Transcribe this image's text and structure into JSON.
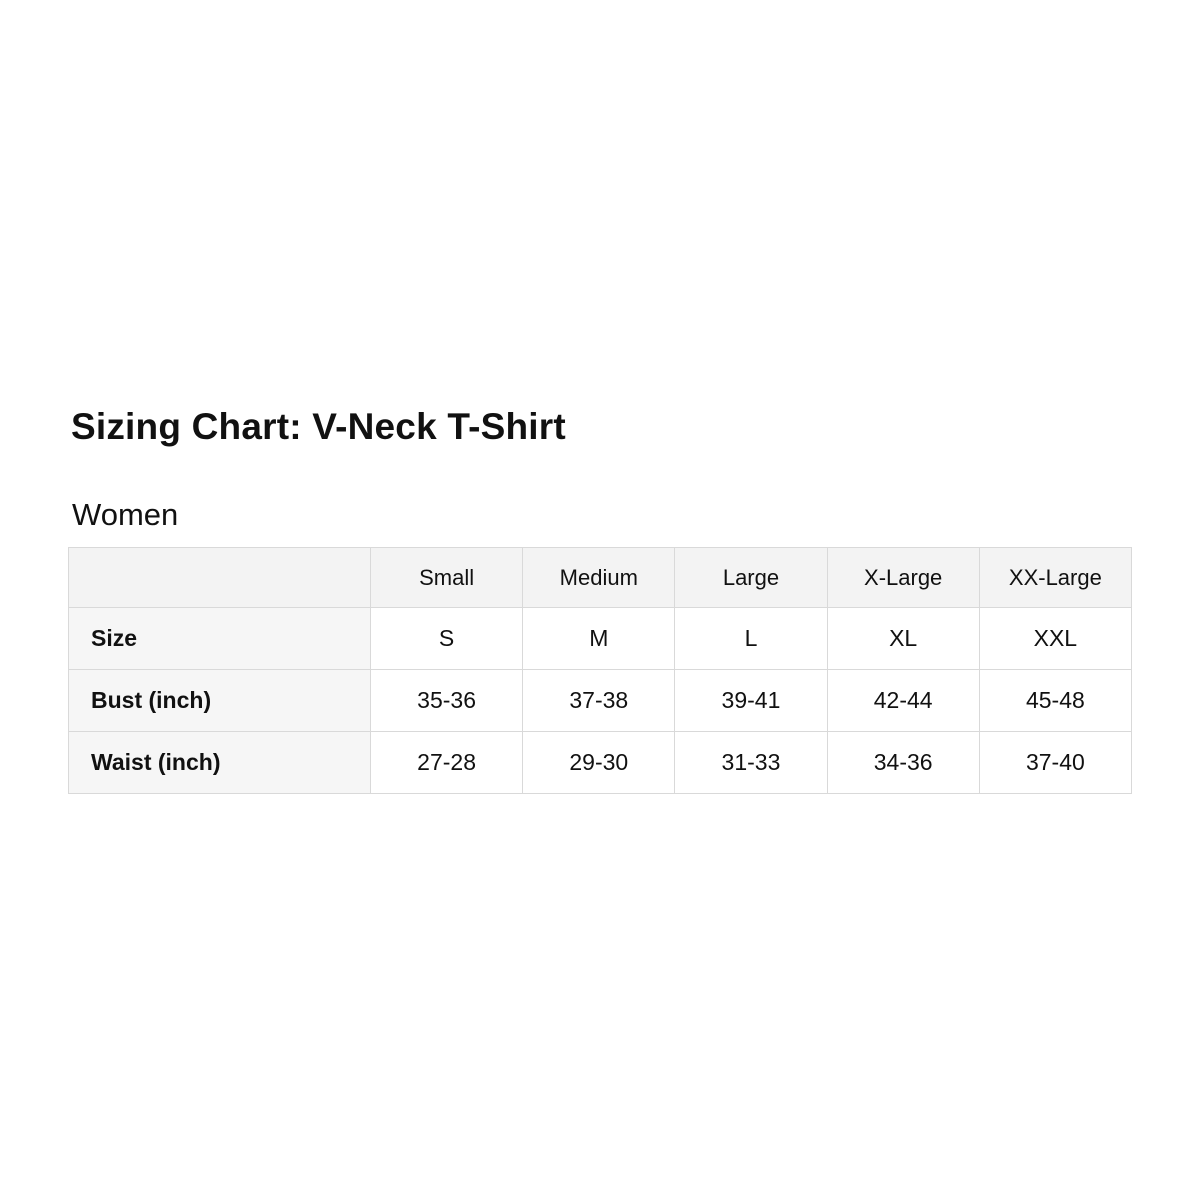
{
  "header": {
    "title": "Sizing Chart: V-Neck T-Shirt",
    "section": "Women"
  },
  "chart_data": {
    "type": "table",
    "title": "Sizing Chart: V-Neck T-Shirt",
    "section": "Women",
    "columns": [
      "Small",
      "Medium",
      "Large",
      "X-Large",
      "XX-Large"
    ],
    "rows": [
      {
        "label": "Size",
        "values": [
          "S",
          "M",
          "L",
          "XL",
          "XXL"
        ]
      },
      {
        "label": "Bust (inch)",
        "values": [
          "35-36",
          "37-38",
          "39-41",
          "42-44",
          "45-48"
        ]
      },
      {
        "label": "Waist (inch)",
        "values": [
          "27-28",
          "29-30",
          "31-33",
          "34-36",
          "37-40"
        ]
      }
    ]
  },
  "colors": {
    "page_bg": "#ffffff",
    "text": "#111111",
    "header_bg": "#f3f3f3",
    "label_bg": "#f6f6f6",
    "border": "#d9d9d9"
  }
}
